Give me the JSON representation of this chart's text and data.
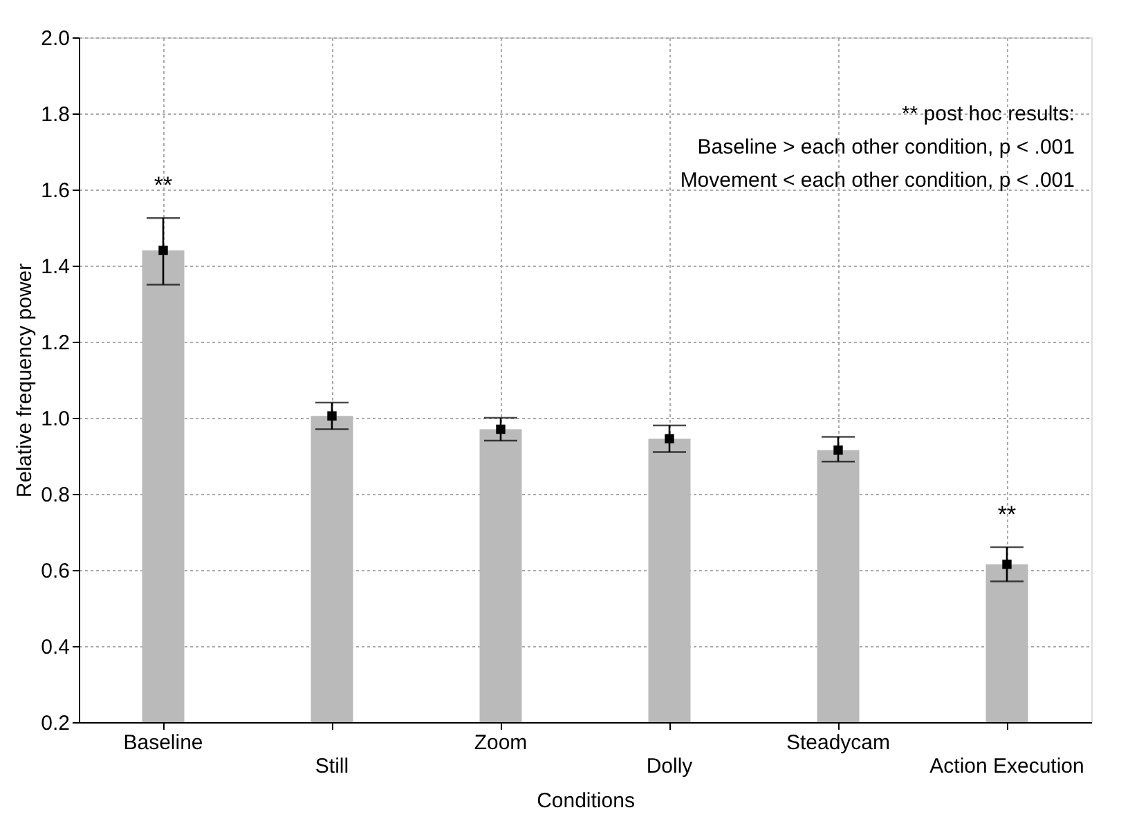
{
  "chart_data": {
    "type": "bar",
    "xlabel": "Conditions",
    "ylabel": "Relative frequency power",
    "categories": [
      "Baseline",
      "Still",
      "Zoom",
      "Dolly",
      "Steadycam",
      "Action Execution"
    ],
    "series": [
      {
        "color": "#bababa",
        "values": [
          1.44,
          1.005,
          0.97,
          0.945,
          0.915,
          0.615
        ],
        "errors": [
          [
            1.35,
            1.525
          ],
          [
            0.97,
            1.04
          ],
          [
            0.94,
            1.0
          ],
          [
            0.91,
            0.98
          ],
          [
            0.885,
            0.95
          ],
          [
            0.57,
            0.66
          ]
        ]
      },
      {
        "type": "scatter",
        "color": "#000000",
        "marker": "square",
        "x": [
          "Baseline",
          "Still",
          "Zoom",
          "Dolly",
          "Steadycam",
          "Action Execution"
        ],
        "values": [
          1.44,
          1.005,
          0.97,
          0.945,
          0.915,
          0.615
        ]
      }
    ],
    "ylim": [
      0.2,
      2.0
    ],
    "yticks": [
      0.2,
      0.4,
      0.6,
      0.8,
      {
        "value": 1,
        "label": "1.0"
      },
      1.2,
      1.4,
      1.6,
      1.8,
      {
        "value": 2,
        "label": "2.0"
      }
    ],
    "grid": true,
    "annotations": [
      "**",
      "**",
      "** post hoc results:",
      "Baseline > each other condition, p < .001",
      "Movement < each other condition, p < .001"
    ]
  }
}
